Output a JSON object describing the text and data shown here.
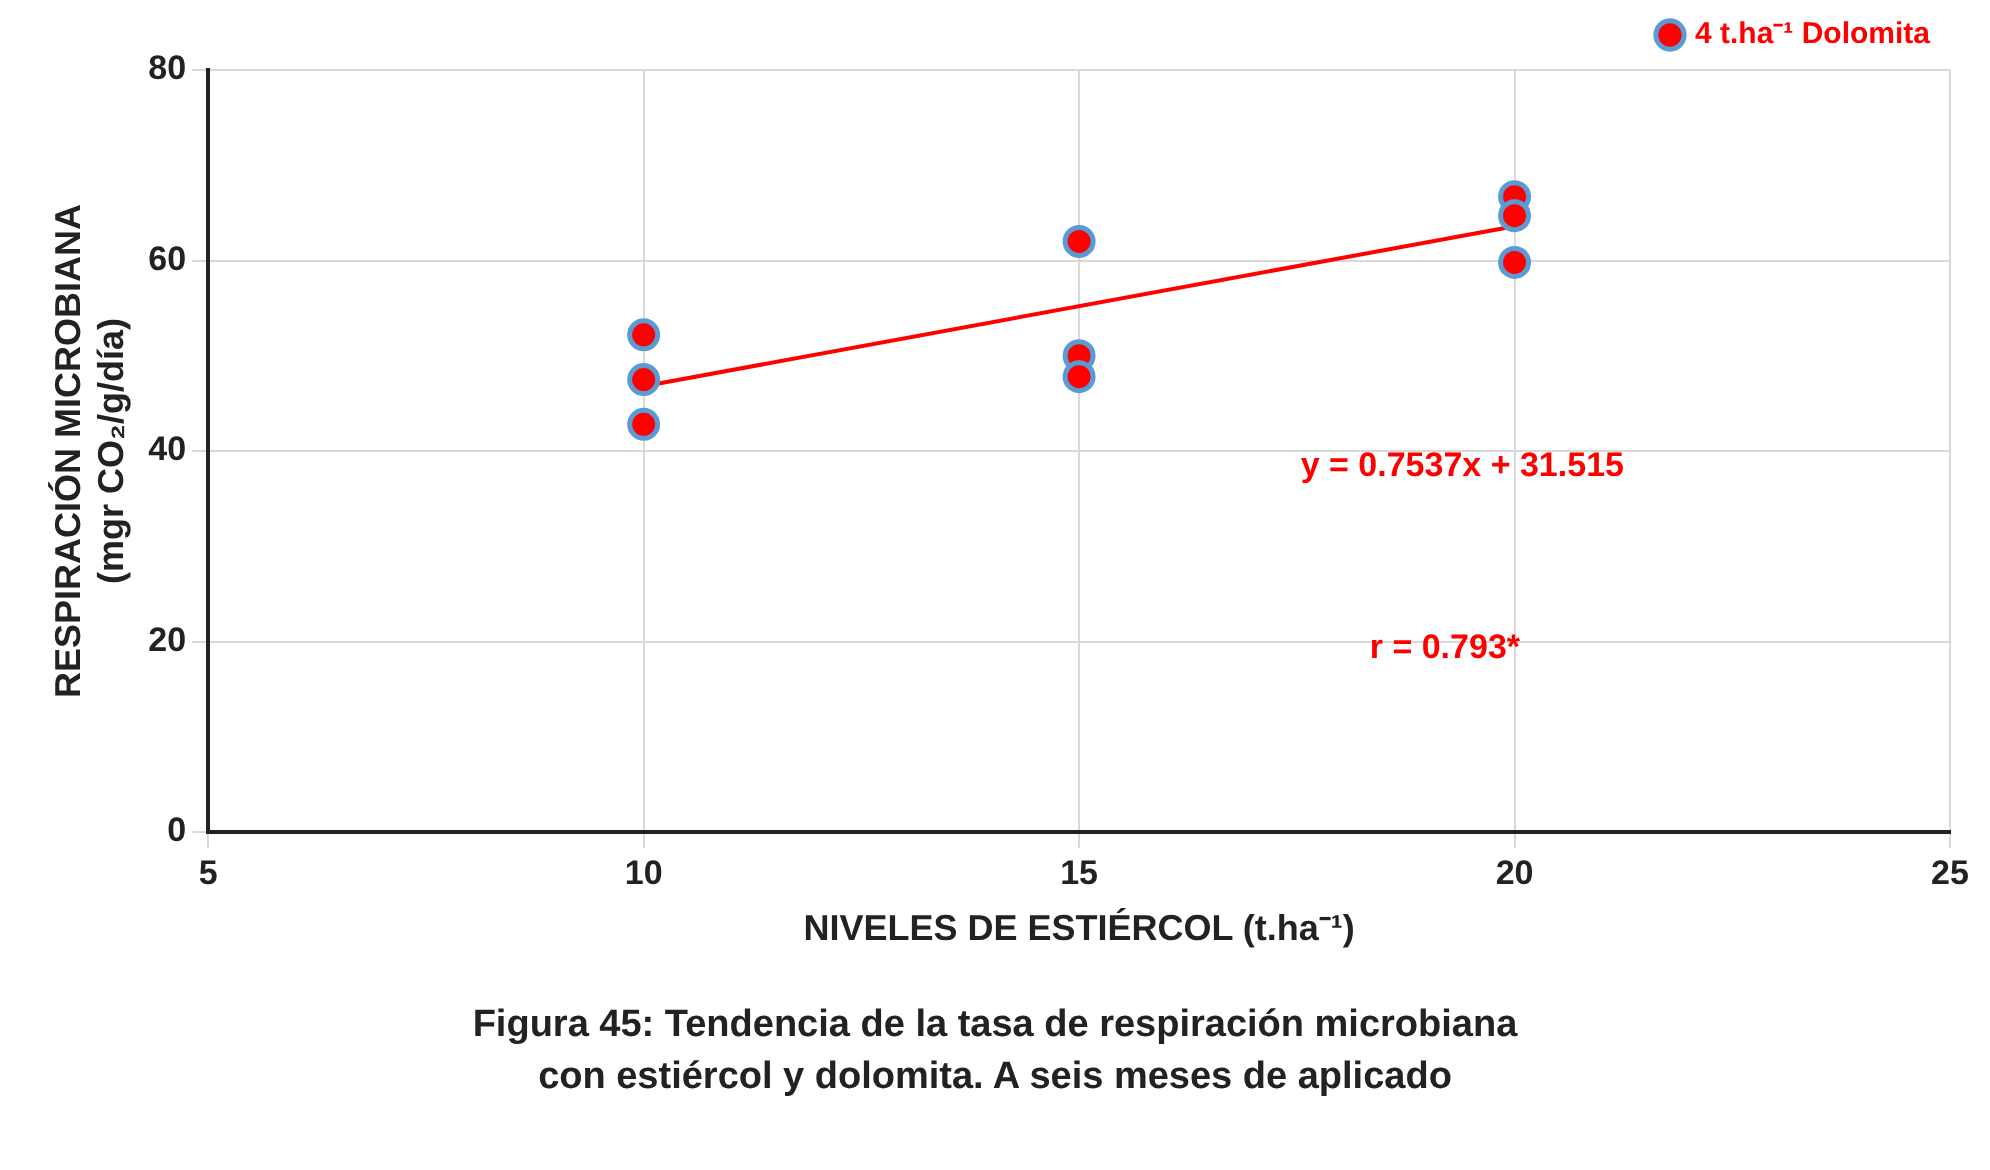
{
  "chart_data": {
    "type": "scatter",
    "title": "Figura 45:  Tendencia de la tasa de respiración  microbiana con estiércol y dolomita. A seis meses de aplicado",
    "xlabel": "NIVELES DE ESTIÉRCOL (t.ha⁻¹)",
    "ylabel": "RESPIRACIÓN MICROBIANA\n(mgr CO₂/g/día)",
    "series": [
      {
        "name": "4 t.ha⁻¹ Dolomita",
        "color": "#ff0000",
        "x": [
          10,
          10,
          10,
          15,
          15,
          15,
          20,
          20,
          20
        ],
        "values": [
          52.2,
          47.5,
          42.8,
          62.0,
          50.0,
          47.8,
          66.7,
          64.7,
          59.8
        ]
      },
      {
        "type": "line",
        "marker": "none",
        "color": "#ff0000",
        "x": [
          10,
          20
        ],
        "values": [
          46.8,
          63.6
        ]
      }
    ],
    "annotations": [
      "y = 0.7537x + 31.515",
      "r = 0.793*"
    ],
    "xlim": [
      5,
      25
    ],
    "xticks": [
      5,
      10,
      15,
      20,
      25
    ],
    "ylim": [
      0,
      80
    ],
    "yticks": [
      0,
      20,
      40,
      60,
      80
    ],
    "grid": true,
    "legend": "top right"
  }
}
